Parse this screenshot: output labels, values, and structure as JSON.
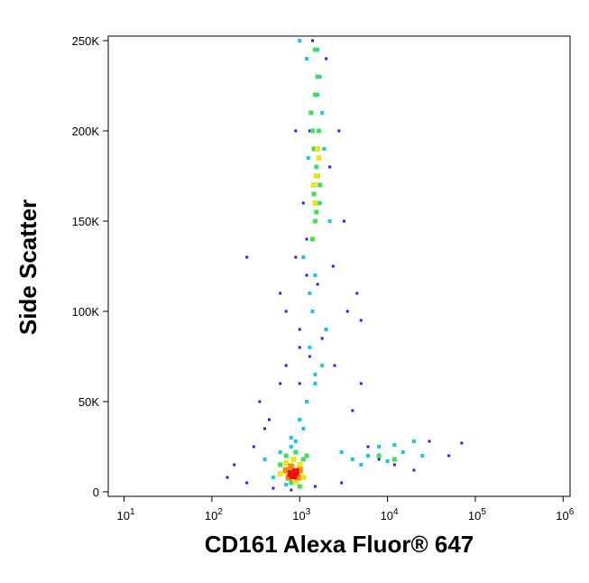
{
  "chart_data": {
    "type": "scatter",
    "x_label": "CD161 Alexa Fluor® 647",
    "y_label": "Side Scatter",
    "xscale": "log",
    "xlim": [
      6.6,
      1200000
    ],
    "ylim": [
      -2500,
      252500
    ],
    "xticks": [
      {
        "value": 10,
        "label": "10",
        "superscript": "1"
      },
      {
        "value": 100,
        "label": "10",
        "superscript": "2"
      },
      {
        "value": 1000,
        "label": "10",
        "superscript": "3"
      },
      {
        "value": 10000,
        "label": "10",
        "superscript": "4"
      },
      {
        "value": 100000,
        "label": "10",
        "superscript": "5"
      },
      {
        "value": 1000000,
        "label": "10",
        "superscript": "6"
      }
    ],
    "yticks": [
      0,
      {
        "value": 50000,
        "label": "50K"
      },
      {
        "value": 100000,
        "label": "100K"
      },
      {
        "value": 150000,
        "label": "150K"
      },
      {
        "value": 200000,
        "label": "200K"
      },
      {
        "value": 250000,
        "label": "250K"
      }
    ],
    "series": [
      {
        "color": "#1f1fff",
        "x": [
          300,
          450,
          600,
          1000,
          2000,
          3500,
          5000,
          250,
          180,
          150,
          400,
          700,
          1200,
          2500,
          4000,
          6000,
          8000,
          12000,
          20000,
          30000,
          50000,
          70000,
          500,
          800,
          1500,
          3000,
          900,
          1100,
          1300,
          1700,
          2200,
          600,
          5000,
          15000,
          700,
          1000,
          1400,
          2000,
          2800,
          1200,
          900,
          1600,
          2400,
          1800,
          1000,
          3200,
          4500,
          250,
          350,
          1300
        ],
        "y": [
          25000,
          40000,
          60000,
          80000,
          90000,
          100000,
          60000,
          5000,
          15000,
          8000,
          35000,
          100000,
          120000,
          70000,
          45000,
          25000,
          18000,
          15000,
          12000,
          28000,
          20000,
          27000,
          2000,
          1000,
          3000,
          5000,
          130000,
          160000,
          200000,
          230000,
          180000,
          110000,
          95000,
          22000,
          70000,
          90000,
          250000,
          240000,
          200000,
          140000,
          200000,
          115000,
          125000,
          85000,
          60000,
          150000,
          110000,
          130000,
          50000,
          75000
        ]
      },
      {
        "color": "#12c8f0",
        "x": [
          400,
          600,
          800,
          1000,
          1200,
          1500,
          1800,
          2000,
          1300,
          1100,
          1400,
          1700,
          1900,
          1600,
          1200,
          1000,
          800,
          1500,
          1800,
          1300,
          3000,
          4000,
          6000,
          8000,
          10000,
          15000,
          20000,
          25000,
          5000,
          12000,
          500,
          700,
          900,
          1100,
          1400,
          1600,
          2200,
          1500,
          1250,
          1700
        ],
        "y": [
          18000,
          22000,
          30000,
          40000,
          50000,
          60000,
          70000,
          90000,
          110000,
          130000,
          140000,
          160000,
          190000,
          220000,
          240000,
          250000,
          25000,
          120000,
          210000,
          80000,
          22000,
          18000,
          20000,
          25000,
          17000,
          22000,
          28000,
          20000,
          15000,
          26000,
          8000,
          4000,
          28000,
          35000,
          100000,
          245000,
          150000,
          65000,
          185000,
          230000
        ]
      },
      {
        "color": "#3ee05a",
        "x": [
          1400,
          1500,
          1600,
          1700,
          1550,
          1450,
          1650,
          1350,
          1500,
          1600,
          1450,
          1550,
          700,
          900,
          1100,
          600,
          800,
          1000,
          1200,
          8000,
          12000,
          1500,
          1600,
          1400
        ],
        "y": [
          140000,
          150000,
          160000,
          170000,
          180000,
          190000,
          200000,
          210000,
          220000,
          230000,
          165000,
          155000,
          20000,
          22000,
          18000,
          15000,
          5000,
          3000,
          20000,
          20000,
          18000,
          245000,
          175000,
          200000
        ]
      },
      {
        "color": "#e8e81a",
        "x": [
          1500,
          1550,
          1600,
          1450,
          1650,
          700,
          850,
          1000,
          600,
          900,
          1100
        ],
        "y": [
          160000,
          175000,
          190000,
          170000,
          185000,
          16000,
          18000,
          15000,
          10000,
          6000,
          8000
        ]
      },
      {
        "color": "#ff8a00",
        "x": [
          700,
          800,
          900,
          1000,
          750,
          950
        ],
        "y": [
          12000,
          14000,
          10000,
          12000,
          8000,
          8000
        ]
      },
      {
        "color": "#f01010",
        "x": [
          800,
          900,
          850
        ],
        "y": [
          10000,
          11000,
          9000
        ]
      }
    ]
  }
}
